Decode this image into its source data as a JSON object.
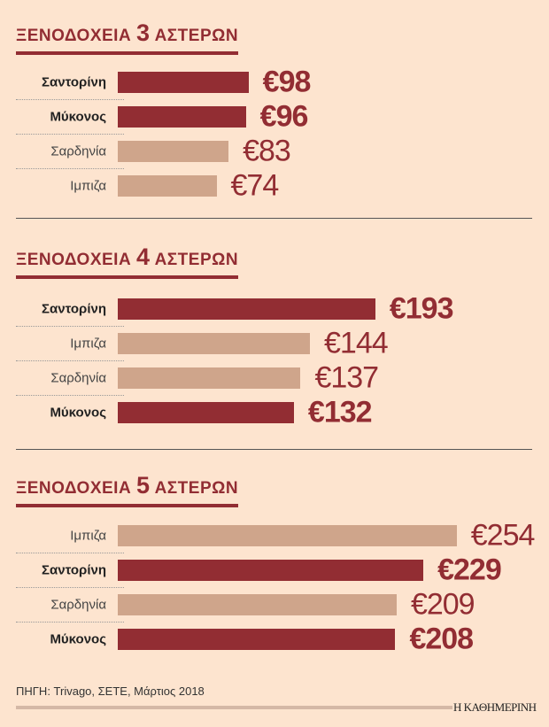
{
  "chart_data": [
    {
      "type": "bar",
      "orientation": "horizontal",
      "title": {
        "prefix": "ΞΕΝΟΔΟΧΕΙΑ",
        "number": "3",
        "suffix": "ΑΣΤΕΡΩΝ"
      },
      "categories": [
        "Σαντορίνη",
        "Μύκονος",
        "Σαρδηνία",
        "Ιμπιζα"
      ],
      "values": [
        98,
        96,
        83,
        74
      ],
      "labels": [
        "€98",
        "€96",
        "€83",
        "€74"
      ],
      "highlighted": [
        true,
        true,
        false,
        false
      ]
    },
    {
      "type": "bar",
      "orientation": "horizontal",
      "title": {
        "prefix": "ΞΕΝΟΔΟΧΕΙΑ",
        "number": "4",
        "suffix": "ΑΣΤΕΡΩΝ"
      },
      "categories": [
        "Σαντορίνη",
        "Ιμπιζα",
        "Σαρδηνία",
        "Μύκονος"
      ],
      "values": [
        193,
        144,
        137,
        132
      ],
      "labels": [
        "€193",
        "€144",
        "€137",
        "€132"
      ],
      "highlighted": [
        true,
        false,
        false,
        true
      ]
    },
    {
      "type": "bar",
      "orientation": "horizontal",
      "title": {
        "prefix": "ΞΕΝΟΔΟΧΕΙΑ",
        "number": "5",
        "suffix": "ΑΣΤΕΡΩΝ"
      },
      "categories": [
        "Ιμπιζα",
        "Σαντορίνη",
        "Σαρδηνία",
        "Μύκονος"
      ],
      "values": [
        254,
        229,
        209,
        208
      ],
      "labels": [
        "€254",
        "€229",
        "€209",
        "€208"
      ],
      "highlighted": [
        false,
        true,
        false,
        true
      ]
    }
  ],
  "colors": {
    "highlight": "#922d33",
    "other": "#cfa58b",
    "background": "#fde4cf"
  },
  "source": "ΠΗΓΗ: Trivago, ΣΕΤΕ, Μάρτιος 2018",
  "brand": "Η ΚΑΘΗΜΕΡΙΝΗ"
}
